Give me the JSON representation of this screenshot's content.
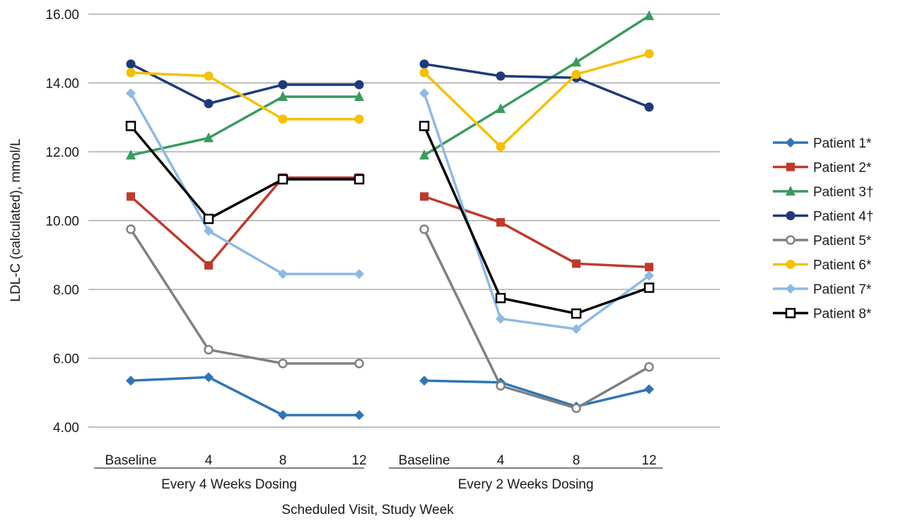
{
  "chart_data": {
    "type": "line",
    "ylabel": "LDL-C (calculated), mmol/L",
    "xlabel": "Scheduled Visit, Study Week",
    "ylim": [
      4.0,
      16.0
    ],
    "yticks": [
      "4.00",
      "6.00",
      "8.00",
      "10.00",
      "12.00",
      "14.00",
      "16.00"
    ],
    "grid": "horizontal",
    "legend_position": "right",
    "categories": [
      "Baseline",
      "4",
      "8",
      "12"
    ],
    "groups": [
      "Every 4 Weeks Dosing",
      "Every 2 Weeks Dosing"
    ],
    "series": [
      {
        "name": "Patient 1*",
        "color": "#2e75b6",
        "marker": "diamond",
        "values": [
          [
            5.35,
            5.45,
            4.35,
            4.35
          ],
          [
            5.35,
            5.3,
            4.6,
            5.1
          ]
        ]
      },
      {
        "name": "Patient 2*",
        "color": "#c0392b",
        "marker": "square",
        "values": [
          [
            10.7,
            8.7,
            11.25,
            11.25
          ],
          [
            10.7,
            9.95,
            8.75,
            8.65
          ]
        ]
      },
      {
        "name": "Patient 3†",
        "color": "#3a9a5f",
        "marker": "triangle",
        "values": [
          [
            11.9,
            12.4,
            13.6,
            13.6
          ],
          [
            11.9,
            13.25,
            14.6,
            15.95
          ]
        ]
      },
      {
        "name": "Patient 4†",
        "color": "#1f3a7a",
        "marker": "circle",
        "values": [
          [
            14.55,
            13.4,
            13.95,
            13.95
          ],
          [
            14.55,
            14.2,
            14.15,
            13.3
          ]
        ]
      },
      {
        "name": "Patient 5*",
        "color": "#808080",
        "marker": "open-circle",
        "values": [
          [
            9.75,
            6.25,
            5.85,
            5.85
          ],
          [
            9.75,
            5.2,
            4.55,
            5.75
          ]
        ]
      },
      {
        "name": "Patient 6*",
        "color": "#f5c000",
        "marker": "circle",
        "values": [
          [
            14.3,
            14.2,
            12.95,
            12.95
          ],
          [
            14.3,
            12.15,
            14.25,
            14.85
          ]
        ]
      },
      {
        "name": "Patient 7*",
        "color": "#8db9e4",
        "marker": "diamond",
        "values": [
          [
            13.7,
            9.7,
            8.45,
            8.45
          ],
          [
            13.7,
            7.15,
            6.85,
            8.4
          ]
        ]
      },
      {
        "name": "Patient 8*",
        "color": "#000000",
        "marker": "open-square",
        "values": [
          [
            12.75,
            10.05,
            11.2,
            11.2
          ],
          [
            12.75,
            7.75,
            7.3,
            8.05
          ]
        ]
      }
    ]
  }
}
